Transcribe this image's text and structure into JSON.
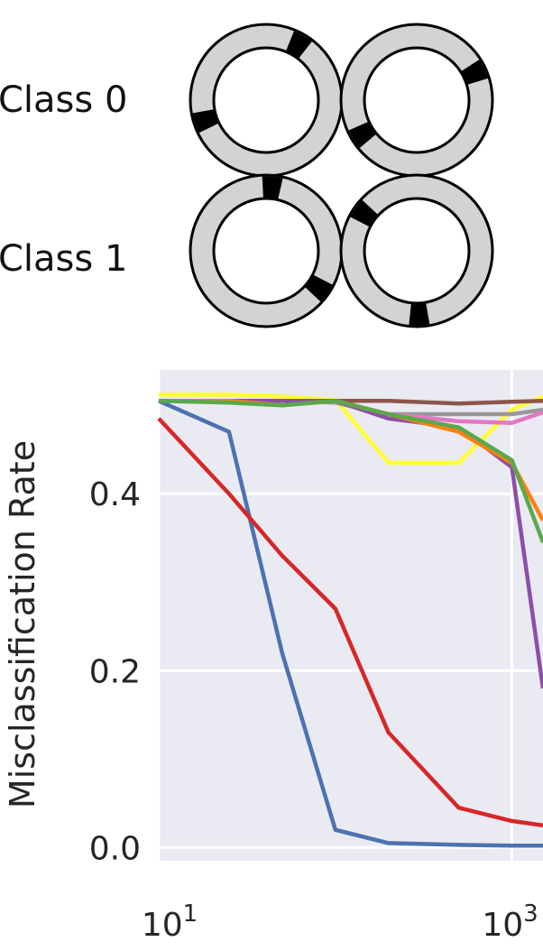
{
  "illustration": {
    "class_labels": [
      "Class 0",
      "Class 1"
    ],
    "ring_fill": "#d3d3d3",
    "mark_color": "#000000",
    "rings": [
      {
        "class": "Class 0",
        "marks_deg": [
          30,
          252
        ]
      },
      {
        "class": "Class 0",
        "marks_deg": [
          65,
          238
        ]
      },
      {
        "class": "Class 1",
        "marks_deg": [
          5,
          125
        ]
      },
      {
        "class": "Class 1",
        "marks_deg": [
          305,
          178
        ]
      }
    ]
  },
  "chart_data": {
    "type": "line",
    "title": "",
    "xlabel": "",
    "ylabel": "Misclassification Rate",
    "xscale": "log",
    "xlim": [
      10,
      1500
    ],
    "ylim": [
      -0.015,
      0.54
    ],
    "xticks": [
      {
        "value": 10,
        "base": "10",
        "exp": "1"
      },
      {
        "value": 1000,
        "base": "10",
        "exp": "3"
      }
    ],
    "yticks": [
      {
        "value": 0.0,
        "label": "0.0"
      },
      {
        "value": 0.2,
        "label": "0.2"
      },
      {
        "value": 0.4,
        "label": "0.4"
      }
    ],
    "grid": true,
    "background": "#eaeaf2",
    "x": [
      10,
      25,
      50,
      100,
      200,
      500,
      1000,
      1500
    ],
    "series": [
      {
        "color": "#4c72b0",
        "values": [
          0.505,
          0.47,
          0.22,
          0.02,
          0.005,
          0.003,
          0.002,
          0.002
        ]
      },
      {
        "color": "#d62728",
        "values": [
          0.485,
          0.4,
          0.33,
          0.27,
          0.13,
          0.045,
          0.03,
          0.025
        ]
      },
      {
        "color": "#ffff33",
        "values": [
          0.512,
          0.512,
          0.51,
          0.506,
          0.435,
          0.435,
          0.495,
          0.51
        ]
      },
      {
        "color": "#8c564b",
        "values": [
          0.505,
          0.505,
          0.505,
          0.505,
          0.505,
          0.502,
          0.504,
          0.505
        ]
      },
      {
        "color": "#999999",
        "values": [
          0.505,
          0.505,
          0.505,
          0.503,
          0.49,
          0.49,
          0.49,
          0.495
        ]
      },
      {
        "color": "#e377c2",
        "values": [
          0.505,
          0.505,
          0.505,
          0.505,
          0.49,
          0.482,
          0.48,
          0.492
        ]
      },
      {
        "color": "#8c4fa8",
        "values": [
          0.505,
          0.505,
          0.505,
          0.505,
          0.485,
          0.475,
          0.43,
          0.18
        ]
      },
      {
        "color": "#ff7f0e",
        "values": [
          0.505,
          0.505,
          0.5,
          0.505,
          0.49,
          0.47,
          0.435,
          0.37
        ]
      },
      {
        "color": "#5aa84c",
        "values": [
          0.505,
          0.503,
          0.5,
          0.505,
          0.49,
          0.475,
          0.438,
          0.345
        ]
      }
    ]
  }
}
